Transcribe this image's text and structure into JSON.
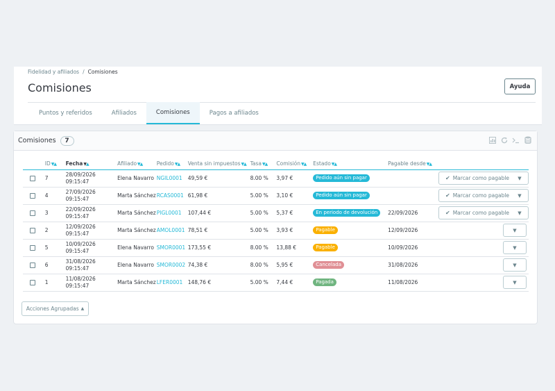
{
  "breadcrumb": {
    "parent": "Fidelidad y afiliados",
    "separator": "/",
    "current": "Comisiones"
  },
  "page": {
    "title": "Comisiones",
    "help_label": "Ayuda"
  },
  "tabs": [
    {
      "label": "Puntos y referidos",
      "active": false
    },
    {
      "label": "Afiliados",
      "active": false
    },
    {
      "label": "Comisiones",
      "active": true
    },
    {
      "label": "Pagos a afiliados",
      "active": false
    }
  ],
  "panel": {
    "title": "Comisiones",
    "count": "7",
    "tools": [
      "chart-icon",
      "refresh-icon",
      "terminal-icon",
      "database-icon"
    ]
  },
  "table": {
    "headers": {
      "id": "ID",
      "date": "Fecha",
      "affiliate": "Afiliado",
      "order": "Pedido",
      "sale": "Venta sin impuestos",
      "rate": "Tasa",
      "commission": "Comisión",
      "status": "Estado",
      "payable_from": "Pagable desde"
    },
    "sort_arrows": {
      "desc": "▼",
      "asc": "▲"
    },
    "rows": [
      {
        "id": "7",
        "date": "28/09/2026 09:15:47",
        "affiliate": "Elena Navarro",
        "order": "NGIL0001",
        "sale": "49,59 €",
        "rate": "8.00 %",
        "commission": "3,97 €",
        "status": "Pedido aún sin pagar",
        "status_color": "#25b9d7",
        "payable_from": "",
        "action": "Marcar como pagable"
      },
      {
        "id": "4",
        "date": "27/09/2026 09:15:47",
        "affiliate": "Marta Sánchez",
        "order": "RCAS0001",
        "sale": "61,98 €",
        "rate": "5.00 %",
        "commission": "3,10 €",
        "status": "Pedido aún sin pagar",
        "status_color": "#25b9d7",
        "payable_from": "",
        "action": "Marcar como pagable"
      },
      {
        "id": "3",
        "date": "22/09/2026 09:15:47",
        "affiliate": "Marta Sánchez",
        "order": "PIGL0001",
        "sale": "107,44 €",
        "rate": "5.00 %",
        "commission": "5,37 €",
        "status": "En periodo de devolución",
        "status_color": "#25b9d7",
        "payable_from": "22/09/2026",
        "action": "Marcar como pagable"
      },
      {
        "id": "2",
        "date": "12/09/2026 09:15:47",
        "affiliate": "Marta Sánchez",
        "order": "AMOL0001",
        "sale": "78,51 €",
        "rate": "5.00 %",
        "commission": "3,93 €",
        "status": "Pagable",
        "status_color": "#fab000",
        "payable_from": "12/09/2026",
        "action": ""
      },
      {
        "id": "5",
        "date": "10/09/2026 09:15:47",
        "affiliate": "Elena Navarro",
        "order": "SMOR0001",
        "sale": "173,55 €",
        "rate": "8.00 %",
        "commission": "13,88 €",
        "status": "Pagable",
        "status_color": "#fab000",
        "payable_from": "10/09/2026",
        "action": ""
      },
      {
        "id": "6",
        "date": "31/08/2026 09:15:47",
        "affiliate": "Elena Navarro",
        "order": "SMOR0002",
        "sale": "74,38 €",
        "rate": "8.00 %",
        "commission": "5,95 €",
        "status": "Cancelada",
        "status_color": "#e08f95",
        "payable_from": "31/08/2026",
        "action": ""
      },
      {
        "id": "1",
        "date": "11/08/2026 09:15:47",
        "affiliate": "Marta Sánchez",
        "order": "LFER0001",
        "sale": "148,76 €",
        "rate": "5.00 %",
        "commission": "7,44 €",
        "status": "Pagada",
        "status_color": "#70b580",
        "payable_from": "11/08/2026",
        "action": ""
      }
    ]
  },
  "bulk_actions": {
    "label": "Acciones Agrupadas"
  }
}
